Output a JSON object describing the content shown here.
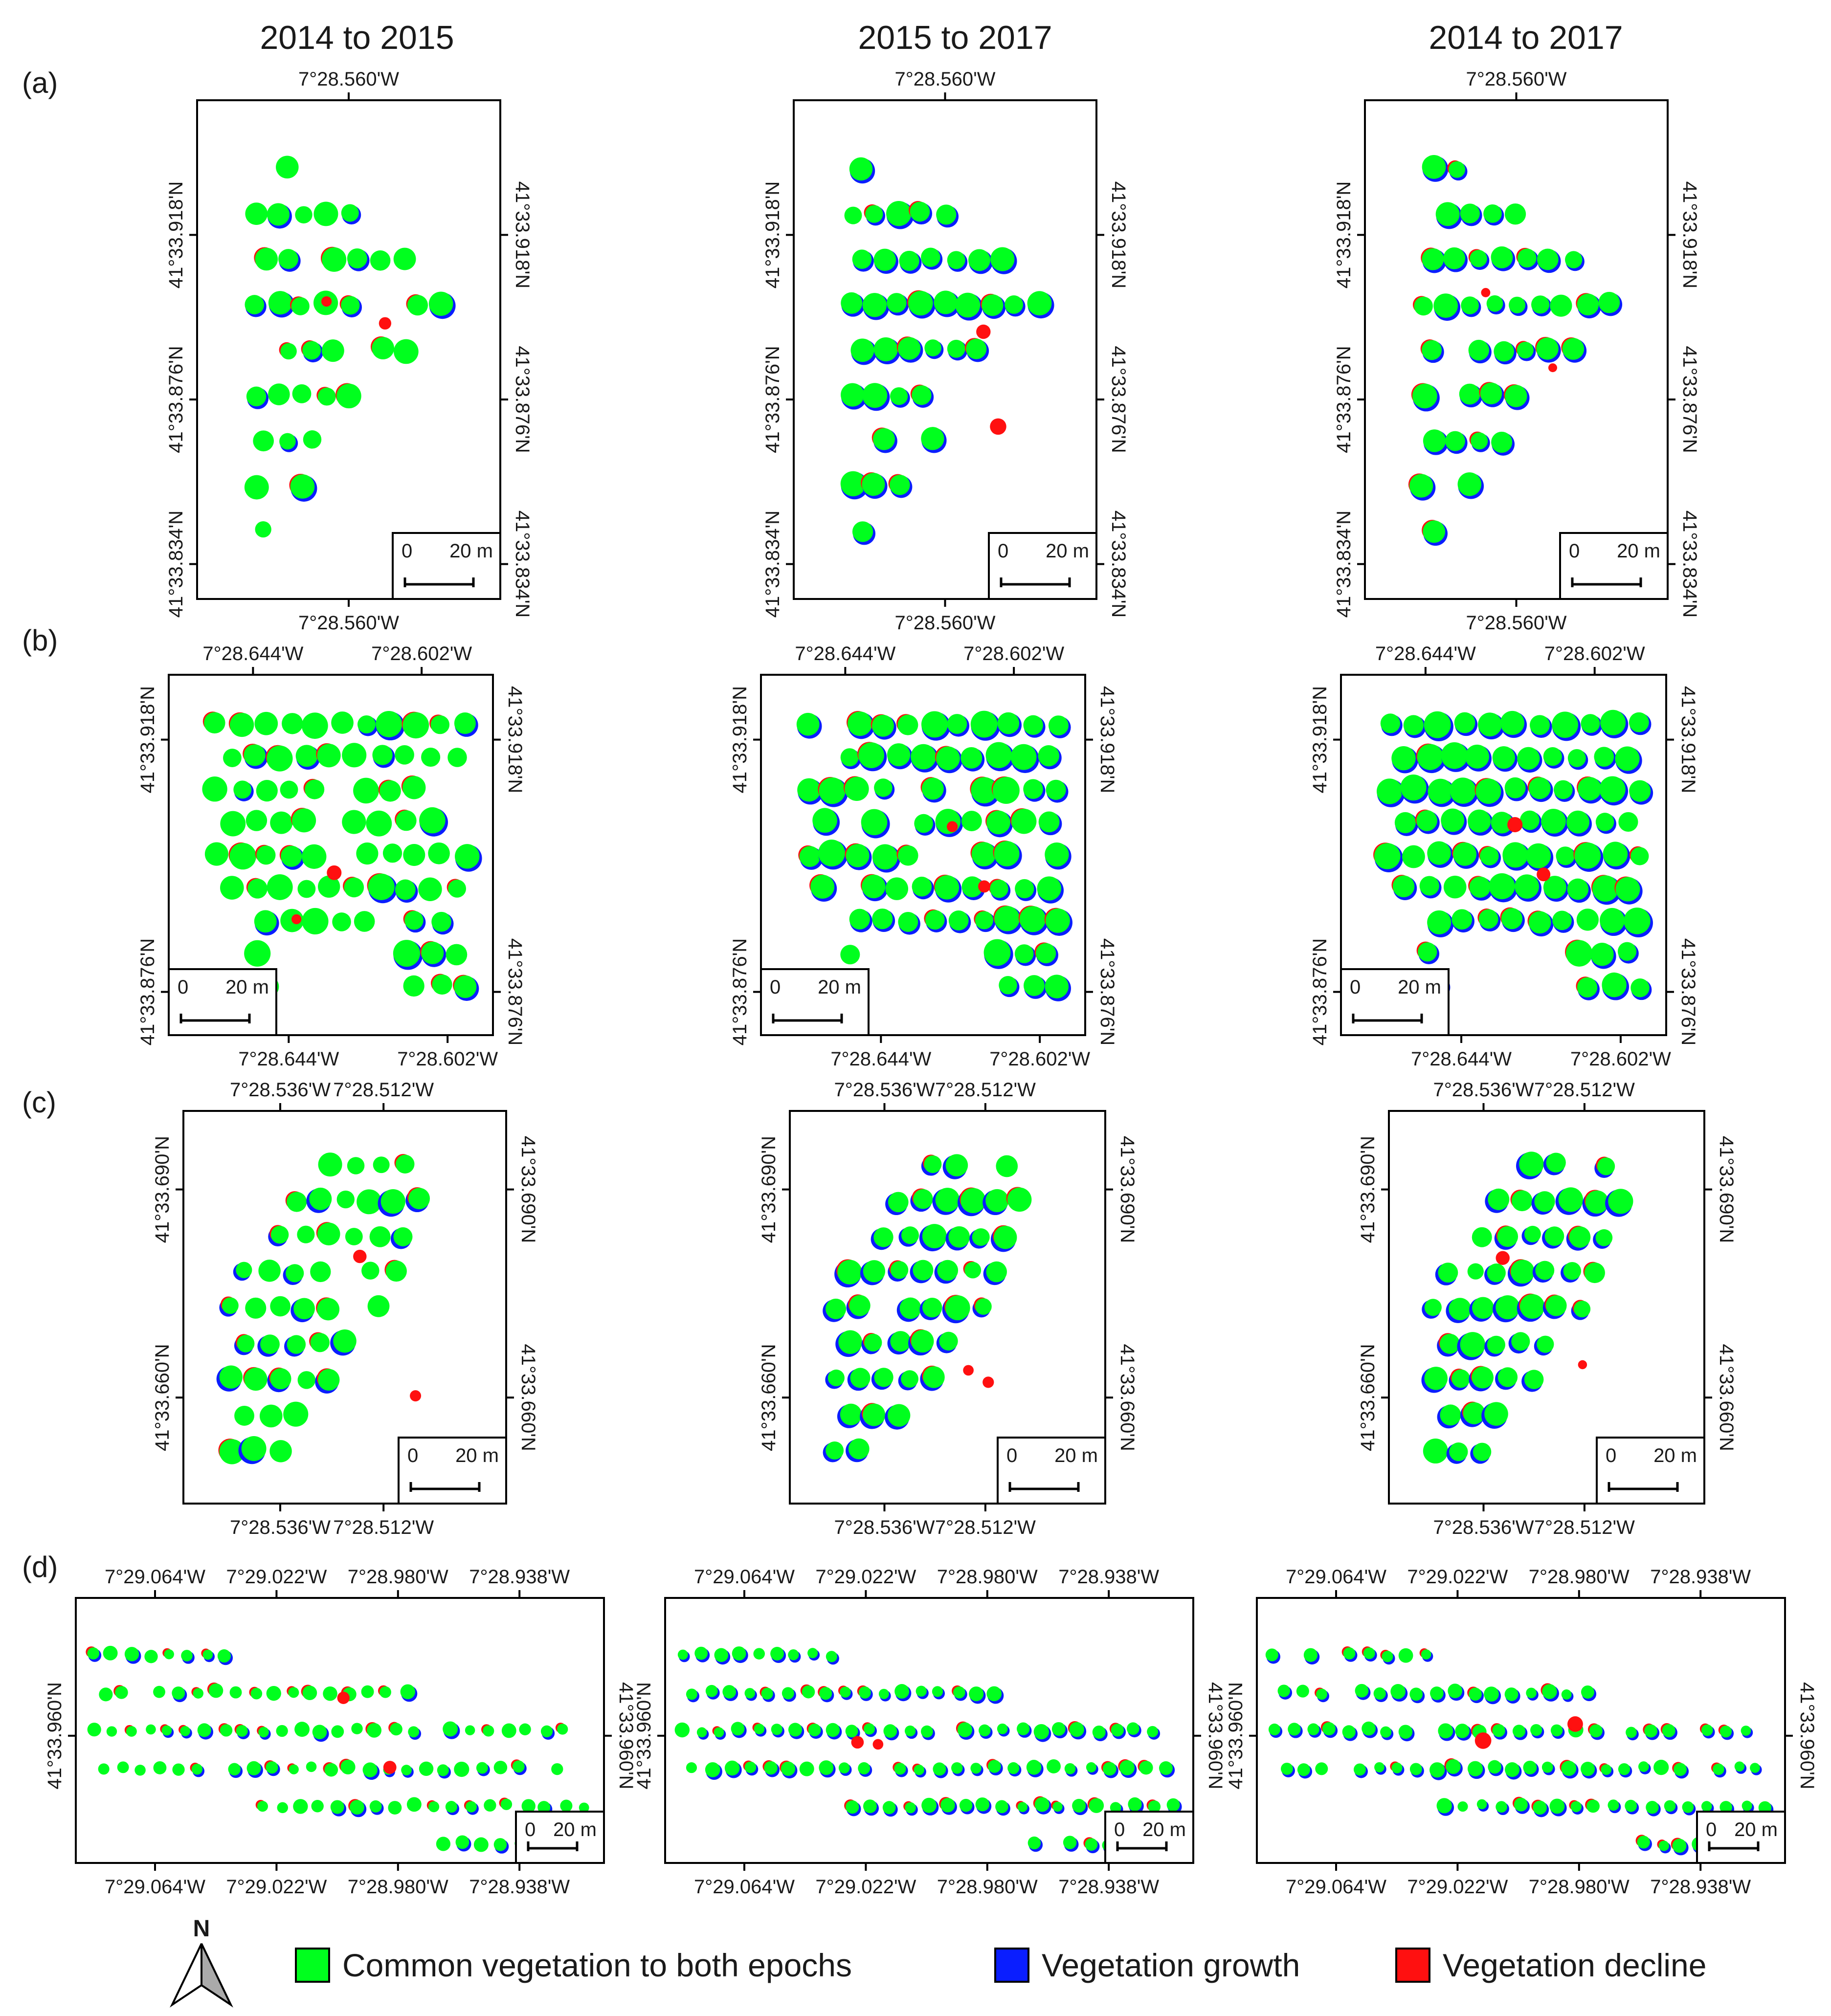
{
  "colors": {
    "common": "#00ff1e",
    "growth": "#0a1eff",
    "decline": "#ff1010"
  },
  "columns": [
    "2014 to 2015",
    "2015 to 2017",
    "2014 to 2017"
  ],
  "legend": [
    {
      "key": "common",
      "label": "Common vegetation to both epochs"
    },
    {
      "key": "growth",
      "label": "Vegetation growth"
    },
    {
      "key": "decline",
      "label": "Vegetation decline"
    }
  ],
  "north_label": "N",
  "scale": {
    "zero": "0",
    "distance": "20 m"
  },
  "chart_data": [
    {
      "type": "map",
      "panel": "(a)",
      "lon_ticks_top": [
        "7°28.560'W"
      ],
      "lon_ticks_bottom": [
        "7°28.560'W"
      ],
      "lat_ticks": [
        "41°33.918'N",
        "41°33.876'N",
        "41°33.834'N"
      ]
    },
    {
      "type": "map",
      "panel": "(b)",
      "lon_ticks_top": [
        "7°28.644'W",
        "7°28.602'W"
      ],
      "lon_ticks_bottom": [
        "7°28.644'W",
        "7°28.602'W"
      ],
      "lat_ticks": [
        "41°33.918'N",
        "41°33.876'N"
      ]
    },
    {
      "type": "map",
      "panel": "(c)",
      "lon_ticks_top": [
        "7°28.536'W",
        "7°28.512'W"
      ],
      "lon_ticks_bottom": [
        "7°28.536'W",
        "7°28.512'W"
      ],
      "lat_ticks": [
        "41°33.690'N",
        "41°33.660'N"
      ]
    },
    {
      "type": "map",
      "panel": "(d)",
      "lon_ticks_top": [
        "7°29.064'W",
        "7°29.022'W",
        "7°28.980'W",
        "7°28.938'W"
      ],
      "lon_ticks_bottom": [
        "7°29.064'W",
        "7°29.022'W",
        "7°28.980'W",
        "7°28.938'W"
      ],
      "lat_ticks": [
        "41°33.960'N"
      ]
    }
  ]
}
